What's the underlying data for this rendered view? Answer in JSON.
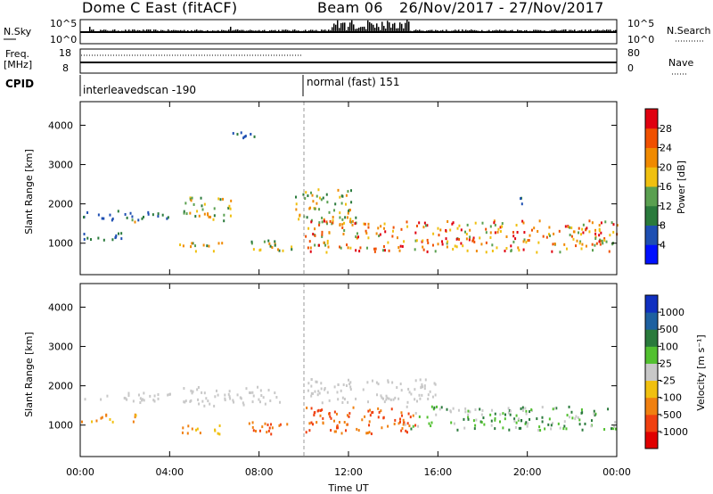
{
  "header": {
    "title": "Dome C East (fitACF)",
    "beam": "Beam 06",
    "date_range": "26/Nov/2017 - 27/Nov/2017"
  },
  "panels": {
    "nsky_label": "N.Sky",
    "nsearch_label": "N.Search",
    "freq_label_top": "Freq.",
    "freq_label_unit": "[MHz]",
    "nave_label": "Nave",
    "cpid_label": "CPID",
    "cpid_first": "interleavedscan -190",
    "cpid_second": "normal (fast) 151"
  },
  "axes": {
    "ylabel": "Slant Range [km]",
    "xlabel": "Time UT",
    "xticks": [
      "00:00",
      "04:00",
      "08:00",
      "12:00",
      "16:00",
      "20:00",
      "00:00"
    ],
    "yticks": [
      "1000",
      "2000",
      "3000",
      "4000"
    ],
    "nsky_ticks": [
      "10^5",
      "10^0"
    ],
    "freq_ticks": [
      "18",
      "8"
    ],
    "nave_ticks": [
      "80",
      "0"
    ]
  },
  "colorbars": {
    "power": {
      "label": "Power [dB]",
      "ticks": [
        "4",
        "8",
        "12",
        "16",
        "20",
        "24",
        "28"
      ],
      "colors": [
        "#0010ff",
        "#1e4fb2",
        "#2a7a3c",
        "#5aa050",
        "#f0c010",
        "#f08a00",
        "#f05000",
        "#e00010"
      ]
    },
    "velocity": {
      "label": "Velocity [m s⁻¹]",
      "ticks": [
        "1000",
        "500",
        "100",
        "25",
        "-25",
        "-100",
        "-500",
        "-1000"
      ],
      "colors": [
        "#1030c0",
        "#1e60a0",
        "#2a7a3c",
        "#52c030",
        "#c8c8c8",
        "#f0c010",
        "#f08010",
        "#f04010",
        "#e00000"
      ]
    }
  },
  "chart_data": [
    {
      "type": "heatmap",
      "name": "Power [dB]",
      "x_range_hours": [
        0,
        24
      ],
      "ylim": [
        200,
        4600
      ],
      "regions": [
        {
          "t0": 0.0,
          "t1": 2.5,
          "r0": 1100,
          "r1": 1300,
          "level": "low"
        },
        {
          "t0": 0.0,
          "t1": 4.0,
          "r0": 1600,
          "r1": 1850,
          "level": "low"
        },
        {
          "t0": 2.2,
          "t1": 2.6,
          "r0": 1550,
          "r1": 1750,
          "level": "high"
        },
        {
          "t0": 4.5,
          "t1": 6.8,
          "r0": 1600,
          "r1": 2200,
          "level": "mid"
        },
        {
          "t0": 4.4,
          "t1": 6.5,
          "r0": 800,
          "r1": 1050,
          "level": "mid"
        },
        {
          "t0": 7.5,
          "t1": 9.5,
          "r0": 750,
          "r1": 1100,
          "level": "mid"
        },
        {
          "t0": 6.8,
          "t1": 7.8,
          "r0": 3700,
          "r1": 4000,
          "level": "low"
        },
        {
          "t0": 9.6,
          "t1": 12.5,
          "r0": 1500,
          "r1": 2400,
          "level": "mid"
        },
        {
          "t0": 10.0,
          "t1": 24.0,
          "r0": 800,
          "r1": 1600,
          "level": "high"
        },
        {
          "t0": 19.2,
          "t1": 19.8,
          "r0": 2000,
          "r1": 2200,
          "level": "low"
        }
      ]
    },
    {
      "type": "heatmap",
      "name": "Velocity",
      "x_range_hours": [
        0,
        24
      ],
      "ylim": [
        200,
        4600
      ],
      "regions": [
        {
          "t0": 0.0,
          "t1": 4.0,
          "r0": 1600,
          "r1": 1850,
          "level": "zero"
        },
        {
          "t0": 0.0,
          "t1": 2.5,
          "r0": 1100,
          "r1": 1300,
          "level": "neg"
        },
        {
          "t0": 4.5,
          "t1": 9.0,
          "r0": 1500,
          "r1": 2000,
          "level": "zero"
        },
        {
          "t0": 4.4,
          "t1": 6.5,
          "r0": 800,
          "r1": 1050,
          "level": "neg"
        },
        {
          "t0": 7.5,
          "t1": 9.5,
          "r0": 750,
          "r1": 1100,
          "level": "negstrong"
        },
        {
          "t0": 10.0,
          "t1": 15.0,
          "r0": 800,
          "r1": 1500,
          "level": "negstrong"
        },
        {
          "t0": 14.5,
          "t1": 24.0,
          "r0": 900,
          "r1": 1500,
          "level": "pos"
        },
        {
          "t0": 10.0,
          "t1": 16.0,
          "r0": 1600,
          "r1": 2200,
          "level": "zero"
        }
      ]
    }
  ]
}
